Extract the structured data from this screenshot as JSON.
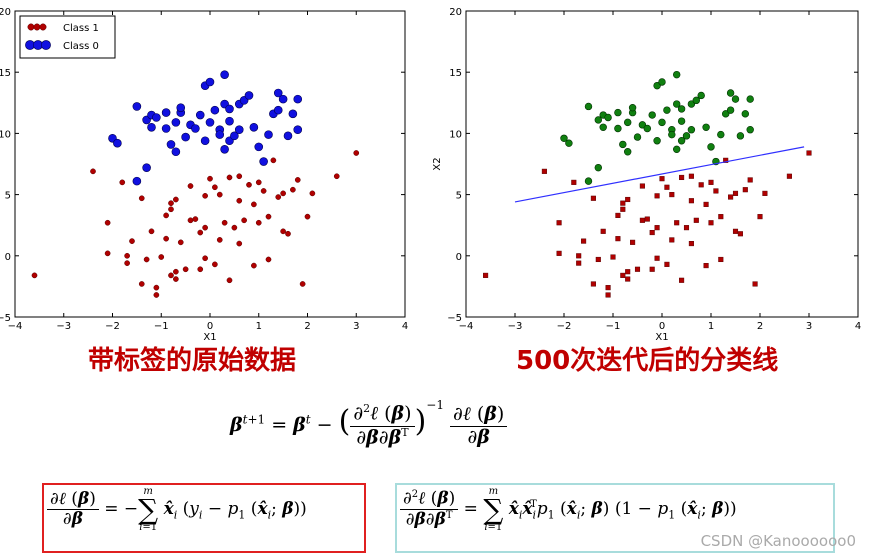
{
  "chart_data": [
    {
      "type": "scatter",
      "xlabel": "X1",
      "ylabel": "",
      "xlim": [
        -4,
        4
      ],
      "ylim": [
        -5,
        20
      ],
      "xticks": [
        "−4",
        "−3",
        "−2",
        "−1",
        "0",
        "1",
        "2",
        "3",
        "4"
      ],
      "yticks": [
        "−5",
        "0",
        "5",
        "10",
        "15",
        "20"
      ],
      "legend": {
        "placement": "top-left",
        "entries": [
          "Class 1",
          "Class 0"
        ]
      },
      "series": [
        {
          "name": "Class 1",
          "color": "#b00000",
          "points": [
            [
              -3.6,
              -1.6
            ],
            [
              -2.4,
              6.9
            ],
            [
              -2.1,
              2.7
            ],
            [
              -2.1,
              0.2
            ],
            [
              -1.8,
              6.0
            ],
            [
              -1.7,
              -0.6
            ],
            [
              -1.7,
              0.0
            ],
            [
              -1.6,
              1.2
            ],
            [
              -1.4,
              -2.3
            ],
            [
              -1.4,
              4.7
            ],
            [
              -1.3,
              -0.3
            ],
            [
              -1.2,
              2.0
            ],
            [
              -1.1,
              -3.2
            ],
            [
              -1.1,
              -2.6
            ],
            [
              -1.0,
              -0.1
            ],
            [
              -0.9,
              1.4
            ],
            [
              -0.9,
              3.3
            ],
            [
              -0.8,
              -1.6
            ],
            [
              -0.8,
              3.8
            ],
            [
              -0.8,
              4.3
            ],
            [
              -0.7,
              -1.9
            ],
            [
              -0.7,
              -1.3
            ],
            [
              -0.7,
              4.6
            ],
            [
              -0.6,
              1.1
            ],
            [
              -0.5,
              -1.1
            ],
            [
              -0.4,
              2.9
            ],
            [
              -0.4,
              5.7
            ],
            [
              -0.3,
              3.0
            ],
            [
              -0.2,
              1.9
            ],
            [
              -0.2,
              -1.1
            ],
            [
              -0.1,
              2.3
            ],
            [
              -0.1,
              4.9
            ],
            [
              -0.1,
              -0.2
            ],
            [
              0.0,
              6.3
            ],
            [
              0.1,
              5.6
            ],
            [
              0.1,
              -0.7
            ],
            [
              0.2,
              1.3
            ],
            [
              0.2,
              5.0
            ],
            [
              0.3,
              2.7
            ],
            [
              0.4,
              6.4
            ],
            [
              0.4,
              -2.0
            ],
            [
              0.5,
              2.3
            ],
            [
              0.6,
              1.0
            ],
            [
              0.6,
              4.5
            ],
            [
              0.6,
              6.5
            ],
            [
              0.7,
              2.9
            ],
            [
              0.8,
              5.8
            ],
            [
              0.9,
              -0.8
            ],
            [
              0.9,
              4.2
            ],
            [
              1.0,
              2.7
            ],
            [
              1.0,
              6.0
            ],
            [
              1.1,
              5.3
            ],
            [
              1.2,
              -0.3
            ],
            [
              1.2,
              3.2
            ],
            [
              1.3,
              7.8
            ],
            [
              1.4,
              4.8
            ],
            [
              1.5,
              2.0
            ],
            [
              1.5,
              5.1
            ],
            [
              1.6,
              1.8
            ],
            [
              1.7,
              5.4
            ],
            [
              1.8,
              6.2
            ],
            [
              1.9,
              -2.3
            ],
            [
              2.0,
              3.2
            ],
            [
              2.1,
              5.1
            ],
            [
              2.6,
              6.5
            ],
            [
              3.0,
              8.4
            ]
          ]
        },
        {
          "name": "Class 0",
          "color": "#1010e0",
          "points": [
            [
              -2.0,
              9.6
            ],
            [
              -1.9,
              9.2
            ],
            [
              -1.5,
              12.2
            ],
            [
              -1.5,
              6.1
            ],
            [
              -1.3,
              11.1
            ],
            [
              -1.3,
              7.2
            ],
            [
              -1.2,
              10.5
            ],
            [
              -1.2,
              11.5
            ],
            [
              -1.1,
              11.3
            ],
            [
              -0.9,
              11.7
            ],
            [
              -0.9,
              10.4
            ],
            [
              -0.8,
              9.1
            ],
            [
              -0.7,
              8.5
            ],
            [
              -0.7,
              10.9
            ],
            [
              -0.6,
              11.7
            ],
            [
              -0.6,
              12.1
            ],
            [
              -0.5,
              9.7
            ],
            [
              -0.4,
              10.7
            ],
            [
              -0.3,
              10.4
            ],
            [
              -0.2,
              11.5
            ],
            [
              -0.1,
              13.9
            ],
            [
              -0.1,
              9.4
            ],
            [
              0.0,
              14.2
            ],
            [
              0.0,
              10.9
            ],
            [
              0.1,
              11.9
            ],
            [
              0.2,
              10.3
            ],
            [
              0.2,
              9.9
            ],
            [
              0.3,
              14.8
            ],
            [
              0.3,
              12.4
            ],
            [
              0.3,
              8.7
            ],
            [
              0.4,
              12.0
            ],
            [
              0.4,
              11.0
            ],
            [
              0.4,
              9.4
            ],
            [
              0.5,
              9.8
            ],
            [
              0.6,
              12.4
            ],
            [
              0.6,
              10.3
            ],
            [
              0.7,
              12.7
            ],
            [
              0.8,
              13.1
            ],
            [
              0.9,
              10.5
            ],
            [
              1.0,
              8.9
            ],
            [
              1.1,
              7.7
            ],
            [
              1.2,
              9.9
            ],
            [
              1.3,
              11.6
            ],
            [
              1.4,
              13.3
            ],
            [
              1.4,
              11.9
            ],
            [
              1.5,
              12.8
            ],
            [
              1.6,
              9.8
            ],
            [
              1.7,
              11.6
            ],
            [
              1.8,
              12.8
            ],
            [
              1.8,
              10.3
            ]
          ]
        }
      ]
    },
    {
      "type": "scatter",
      "xlabel": "X1",
      "ylabel": "X2",
      "xlim": [
        -4,
        4
      ],
      "ylim": [
        -5,
        20
      ],
      "xticks": [
        "−4",
        "−3",
        "−2",
        "−1",
        "0",
        "1",
        "2",
        "3",
        "4"
      ],
      "yticks": [
        "−5",
        "0",
        "5",
        "10",
        "15",
        "20"
      ],
      "series": [
        {
          "name": "Class 1",
          "color": "#b00000",
          "points": "same as left chart"
        },
        {
          "name": "Class 0",
          "color": "#108010",
          "points": "same as left chart"
        }
      ],
      "line": {
        "color": "#3030ff",
        "x": [
          -3.0,
          2.9
        ],
        "y": [
          4.4,
          8.9
        ]
      }
    }
  ],
  "captions": {
    "left": "带标签的原始数据",
    "right_bold": "500",
    "right_rest": "次迭代后的分类线"
  },
  "watermark": "CSDN @Kanoooooo0"
}
